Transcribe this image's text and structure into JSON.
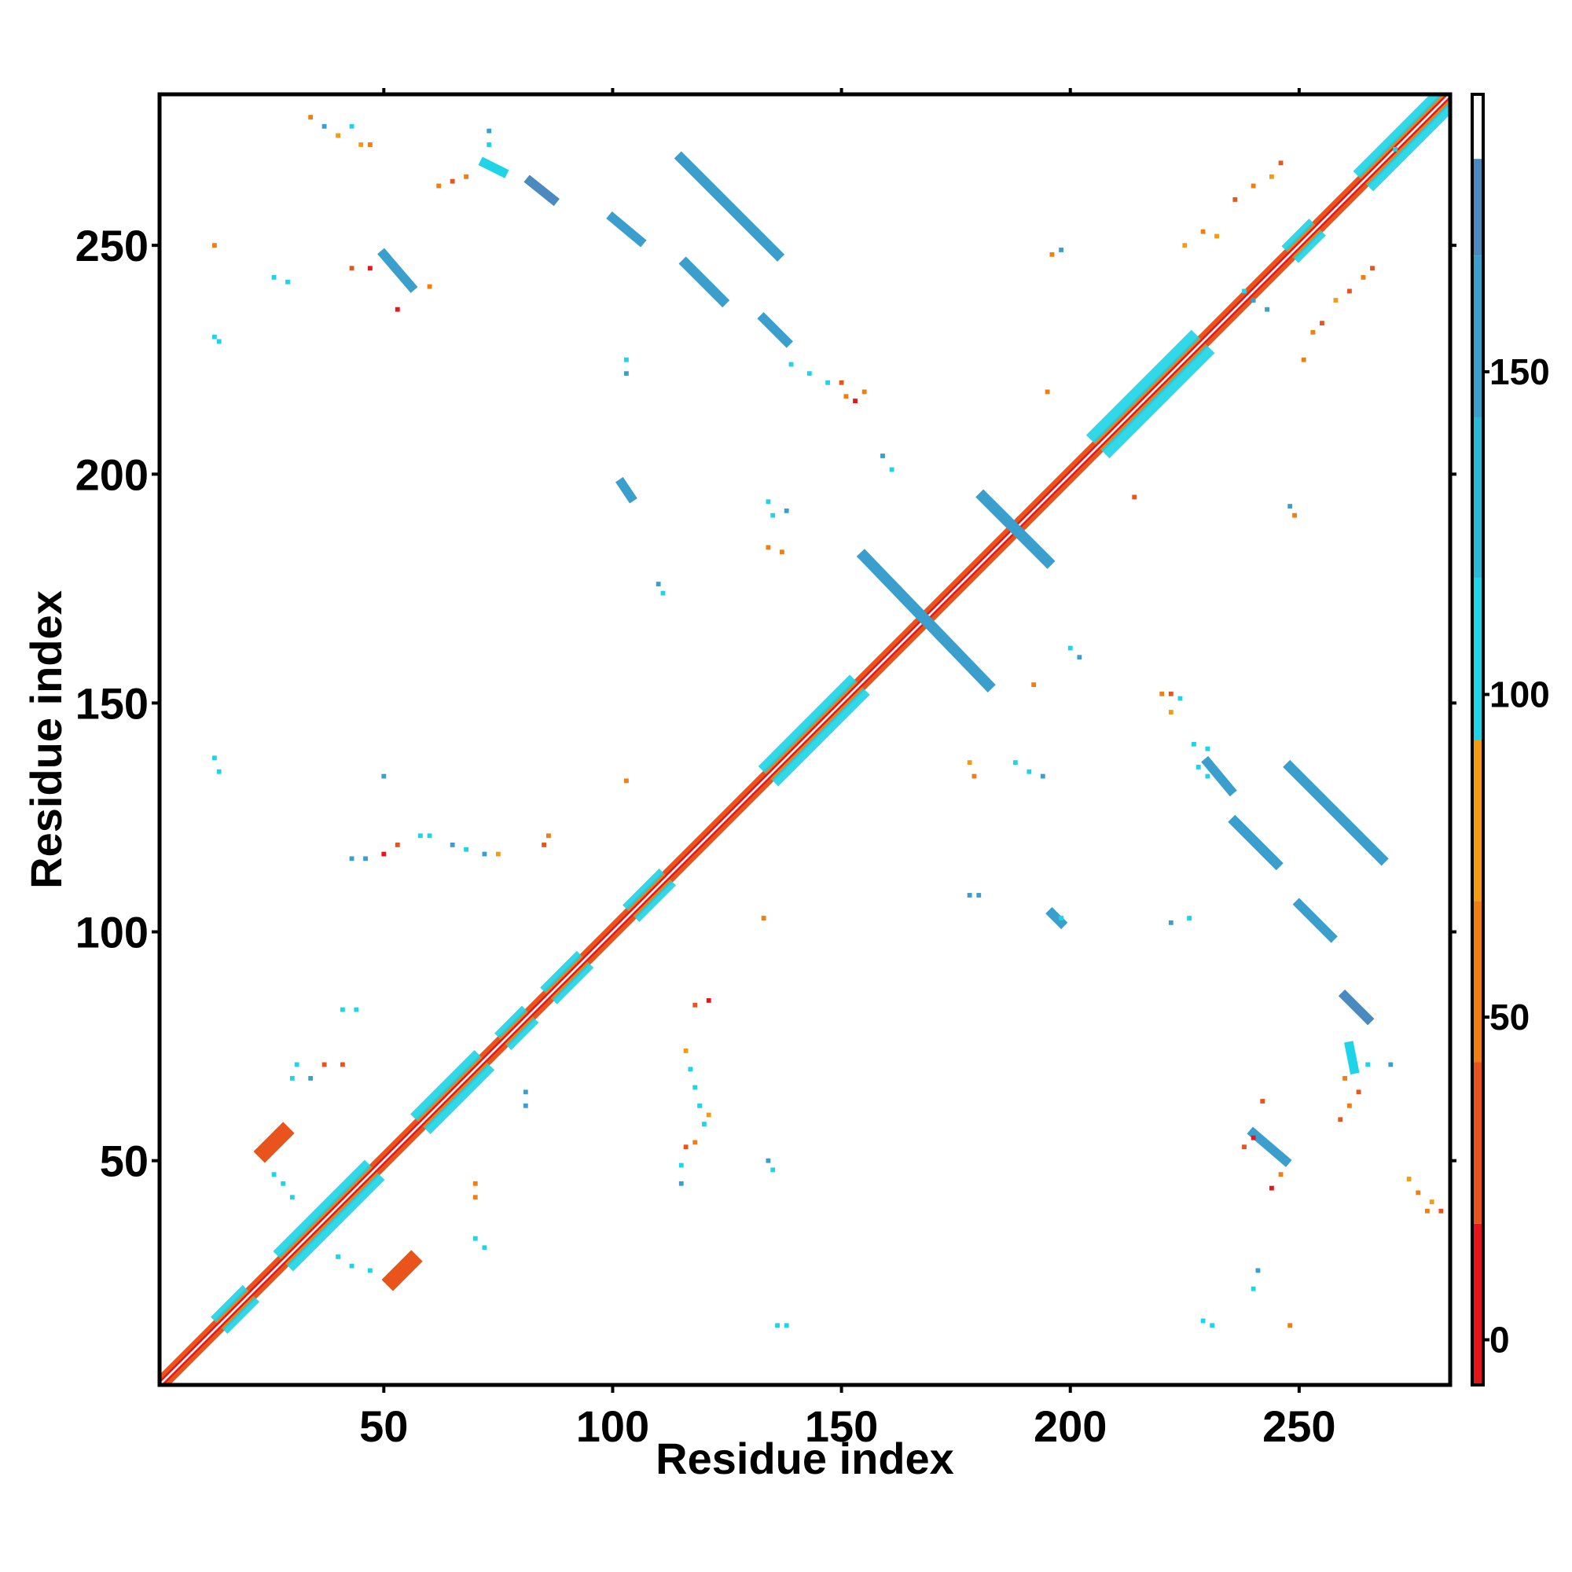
{
  "chart_data": {
    "type": "heatmap",
    "title": "",
    "xlabel": "Residue index",
    "ylabel": "Residue index",
    "xlim": [
      1,
      283
    ],
    "ylim": [
      1,
      283
    ],
    "x_ticks": [
      50,
      100,
      150,
      200,
      250
    ],
    "y_ticks": [
      50,
      100,
      150,
      200,
      250
    ],
    "colorbar": {
      "ticks": [
        0,
        50,
        100,
        150
      ],
      "range": [
        -7,
        193
      ],
      "bands": [
        {
          "from": -7,
          "to": 18,
          "color": "#e8151b"
        },
        {
          "from": 18,
          "to": 43,
          "color": "#e8541b"
        },
        {
          "from": 43,
          "to": 68,
          "color": "#f07e12"
        },
        {
          "from": 68,
          "to": 93,
          "color": "#f39c12"
        },
        {
          "from": 93,
          "to": 118,
          "color": "#1ed4e6"
        },
        {
          "from": 118,
          "to": 143,
          "color": "#2bb9d8"
        },
        {
          "from": 143,
          "to": 168,
          "color": "#3a9fcc"
        },
        {
          "from": 168,
          "to": 183,
          "color": "#4a8abf"
        },
        {
          "from": 183,
          "to": 193,
          "color": "#ffffff"
        }
      ]
    },
    "diagonal": {
      "from": 1,
      "to": 283,
      "color": "#e8541b",
      "core_color": "#e8151b"
    },
    "diagonal_segments": [
      {
        "from": 14,
        "to": 21,
        "color": "#1ed4e6",
        "width": 2
      },
      {
        "from": 28,
        "to": 48,
        "color": "#1ed4e6",
        "width": 3
      },
      {
        "from": 58,
        "to": 72,
        "color": "#1ed4e6",
        "width": 3
      },
      {
        "from": 76,
        "to": 82,
        "color": "#1ed4e6",
        "width": 2
      },
      {
        "from": 86,
        "to": 94,
        "color": "#1ed4e6",
        "width": 2
      },
      {
        "from": 104,
        "to": 112,
        "color": "#1ed4e6",
        "width": 2
      },
      {
        "from": 134,
        "to": 154,
        "color": "#1ed4e6",
        "width": 3
      },
      {
        "from": 206,
        "to": 229,
        "color": "#1ed4e6",
        "width": 4
      },
      {
        "from": 248,
        "to": 254,
        "color": "#1ed4e6",
        "width": 2
      },
      {
        "from": 264,
        "to": 283,
        "color": "#1ed4e6",
        "width": 3
      }
    ],
    "off_diagonal_strands": [
      {
        "points": [
          [
            115,
            269
          ],
          [
            136,
            248
          ]
        ],
        "color": "#3a9fcc",
        "width": 2.2
      },
      {
        "points": [
          [
            248,
            136
          ],
          [
            268,
            116
          ]
        ],
        "color": "#3a9fcc",
        "width": 2.2
      },
      {
        "points": [
          [
            116,
            246
          ],
          [
            124,
            238
          ]
        ],
        "color": "#3a9fcc",
        "width": 2.2
      },
      {
        "points": [
          [
            236,
            124
          ],
          [
            245,
            115
          ]
        ],
        "color": "#3a9fcc",
        "width": 2.2
      },
      {
        "points": [
          [
            133,
            234
          ],
          [
            138,
            229
          ]
        ],
        "color": "#3a9fcc",
        "width": 2
      },
      {
        "points": [
          [
            230,
            137
          ],
          [
            235,
            131
          ]
        ],
        "color": "#3a9fcc",
        "width": 2
      },
      {
        "points": [
          [
            100,
            256
          ],
          [
            106,
            251
          ]
        ],
        "color": "#3a9fcc",
        "width": 2
      },
      {
        "points": [
          [
            250,
            106
          ],
          [
            257,
            99
          ]
        ],
        "color": "#3a9fcc",
        "width": 2
      },
      {
        "points": [
          [
            82,
            264
          ],
          [
            87,
            260
          ]
        ],
        "color": "#4a8abf",
        "width": 2
      },
      {
        "points": [
          [
            260,
            86
          ],
          [
            265,
            81
          ]
        ],
        "color": "#4a8abf",
        "width": 2
      },
      {
        "points": [
          [
            50,
            248
          ],
          [
            56,
            241
          ]
        ],
        "color": "#3a9fcc",
        "width": 2
      },
      {
        "points": [
          [
            240,
            56
          ],
          [
            247,
            50
          ]
        ],
        "color": "#3a9fcc",
        "width": 2
      },
      {
        "points": [
          [
            155,
            182
          ],
          [
            182,
            154
          ]
        ],
        "color": "#3a9fcc",
        "width": 2.4
      },
      {
        "points": [
          [
            181,
            195
          ],
          [
            195,
            181
          ]
        ],
        "color": "#3a9fcc",
        "width": 2.4
      },
      {
        "points": [
          [
            72,
            268
          ],
          [
            76,
            266
          ]
        ],
        "color": "#1ed4e6",
        "width": 2
      },
      {
        "points": [
          [
            261,
            75
          ],
          [
            262,
            70
          ]
        ],
        "color": "#1ed4e6",
        "width": 2
      },
      {
        "points": [
          [
            24,
            52
          ],
          [
            28,
            56
          ]
        ],
        "color": "#e8541b",
        "width": 3.5
      },
      {
        "points": [
          [
            52,
            24
          ],
          [
            56,
            28
          ]
        ],
        "color": "#e8541b",
        "width": 3.5
      },
      {
        "points": [
          [
            102,
            198
          ],
          [
            104,
            195
          ]
        ],
        "color": "#3a9fcc",
        "width": 2
      },
      {
        "points": [
          [
            196,
            104
          ],
          [
            198,
            102
          ]
        ],
        "color": "#3a9fcc",
        "width": 2
      }
    ],
    "scatter_cells": [
      {
        "x": 13,
        "y": 230,
        "color": "#1ed4e6"
      },
      {
        "x": 14,
        "y": 229,
        "color": "#1ed4e6"
      },
      {
        "x": 13,
        "y": 138,
        "color": "#1ed4e6"
      },
      {
        "x": 14,
        "y": 135,
        "color": "#1ed4e6"
      },
      {
        "x": 13,
        "y": 250,
        "color": "#f07e12"
      },
      {
        "x": 34,
        "y": 278,
        "color": "#f07e12"
      },
      {
        "x": 37,
        "y": 276,
        "color": "#3a9fcc"
      },
      {
        "x": 40,
        "y": 274,
        "color": "#f39c12"
      },
      {
        "x": 43,
        "y": 276,
        "color": "#1ed4e6"
      },
      {
        "x": 45,
        "y": 272,
        "color": "#f39c12"
      },
      {
        "x": 47,
        "y": 272,
        "color": "#f07e12"
      },
      {
        "x": 62,
        "y": 263,
        "color": "#f07e12"
      },
      {
        "x": 65,
        "y": 264,
        "color": "#e8541b"
      },
      {
        "x": 68,
        "y": 265,
        "color": "#f07e12"
      },
      {
        "x": 73,
        "y": 275,
        "color": "#3a9fcc"
      },
      {
        "x": 73,
        "y": 272,
        "color": "#1ed4e6"
      },
      {
        "x": 26,
        "y": 243,
        "color": "#1ed4e6"
      },
      {
        "x": 29,
        "y": 242,
        "color": "#1ed4e6"
      },
      {
        "x": 43,
        "y": 245,
        "color": "#e8541b"
      },
      {
        "x": 47,
        "y": 245,
        "color": "#e8151b"
      },
      {
        "x": 53,
        "y": 236,
        "color": "#e8151b"
      },
      {
        "x": 60,
        "y": 241,
        "color": "#f07e12"
      },
      {
        "x": 103,
        "y": 225,
        "color": "#1ed4e6"
      },
      {
        "x": 103,
        "y": 222,
        "color": "#3a9fcc"
      },
      {
        "x": 139,
        "y": 224,
        "color": "#1ed4e6"
      },
      {
        "x": 143,
        "y": 222,
        "color": "#1ed4e6"
      },
      {
        "x": 147,
        "y": 220,
        "color": "#1ed4e6"
      },
      {
        "x": 150,
        "y": 220,
        "color": "#e8541b"
      },
      {
        "x": 151,
        "y": 217,
        "color": "#f07e12"
      },
      {
        "x": 153,
        "y": 216,
        "color": "#e8151b"
      },
      {
        "x": 155,
        "y": 218,
        "color": "#f07e12"
      },
      {
        "x": 159,
        "y": 204,
        "color": "#3a9fcc"
      },
      {
        "x": 161,
        "y": 201,
        "color": "#1ed4e6"
      },
      {
        "x": 134,
        "y": 194,
        "color": "#1ed4e6"
      },
      {
        "x": 135,
        "y": 191,
        "color": "#1ed4e6"
      },
      {
        "x": 138,
        "y": 192,
        "color": "#3a9fcc"
      },
      {
        "x": 134,
        "y": 184,
        "color": "#f07e12"
      },
      {
        "x": 137,
        "y": 183,
        "color": "#f07e12"
      },
      {
        "x": 110,
        "y": 176,
        "color": "#3a9fcc"
      },
      {
        "x": 111,
        "y": 174,
        "color": "#1ed4e6"
      },
      {
        "x": 103,
        "y": 133,
        "color": "#f07e12"
      },
      {
        "x": 50,
        "y": 134,
        "color": "#3a9fcc"
      },
      {
        "x": 43,
        "y": 116,
        "color": "#3a9fcc"
      },
      {
        "x": 46,
        "y": 116,
        "color": "#3a9fcc"
      },
      {
        "x": 50,
        "y": 117,
        "color": "#e8151b"
      },
      {
        "x": 53,
        "y": 119,
        "color": "#e8541b"
      },
      {
        "x": 58,
        "y": 121,
        "color": "#1ed4e6"
      },
      {
        "x": 60,
        "y": 121,
        "color": "#1ed4e6"
      },
      {
        "x": 65,
        "y": 119,
        "color": "#3a9fcc"
      },
      {
        "x": 68,
        "y": 118,
        "color": "#1ed4e6"
      },
      {
        "x": 72,
        "y": 117,
        "color": "#3a9fcc"
      },
      {
        "x": 75,
        "y": 117,
        "color": "#f39c12"
      },
      {
        "x": 85,
        "y": 119,
        "color": "#e8541b"
      },
      {
        "x": 86,
        "y": 121,
        "color": "#f07e12"
      },
      {
        "x": 178,
        "y": 137,
        "color": "#f39c12"
      },
      {
        "x": 179,
        "y": 134,
        "color": "#f07e12"
      },
      {
        "x": 188,
        "y": 137,
        "color": "#1ed4e6"
      },
      {
        "x": 191,
        "y": 135,
        "color": "#1ed4e6"
      },
      {
        "x": 194,
        "y": 134,
        "color": "#3a9fcc"
      },
      {
        "x": 178,
        "y": 108,
        "color": "#3a9fcc"
      },
      {
        "x": 180,
        "y": 108,
        "color": "#3a9fcc"
      },
      {
        "x": 196,
        "y": 104,
        "color": "#3a9fcc"
      },
      {
        "x": 198,
        "y": 103,
        "color": "#1ed4e6"
      },
      {
        "x": 133,
        "y": 103,
        "color": "#f07e12"
      },
      {
        "x": 220,
        "y": 152,
        "color": "#f07e12"
      },
      {
        "x": 222,
        "y": 152,
        "color": "#e8541b"
      },
      {
        "x": 224,
        "y": 151,
        "color": "#1ed4e6"
      },
      {
        "x": 222,
        "y": 148,
        "color": "#f39c12"
      },
      {
        "x": 227,
        "y": 141,
        "color": "#1ed4e6"
      },
      {
        "x": 230,
        "y": 140,
        "color": "#1ed4e6"
      },
      {
        "x": 228,
        "y": 136,
        "color": "#1ed4e6"
      },
      {
        "x": 230,
        "y": 134,
        "color": "#1ed4e6"
      },
      {
        "x": 200,
        "y": 162,
        "color": "#1ed4e6"
      },
      {
        "x": 202,
        "y": 160,
        "color": "#3a9fcc"
      },
      {
        "x": 192,
        "y": 154,
        "color": "#f07e12"
      },
      {
        "x": 226,
        "y": 103,
        "color": "#1ed4e6"
      },
      {
        "x": 222,
        "y": 102,
        "color": "#3a9fcc"
      },
      {
        "x": 41,
        "y": 83,
        "color": "#1ed4e6"
      },
      {
        "x": 44,
        "y": 83,
        "color": "#1ed4e6"
      },
      {
        "x": 30,
        "y": 68,
        "color": "#1ed4e6"
      },
      {
        "x": 31,
        "y": 71,
        "color": "#1ed4e6"
      },
      {
        "x": 34,
        "y": 68,
        "color": "#3a9fcc"
      },
      {
        "x": 37,
        "y": 71,
        "color": "#e8541b"
      },
      {
        "x": 41,
        "y": 71,
        "color": "#e8541b"
      },
      {
        "x": 26,
        "y": 47,
        "color": "#1ed4e6"
      },
      {
        "x": 28,
        "y": 45,
        "color": "#1ed4e6"
      },
      {
        "x": 30,
        "y": 42,
        "color": "#1ed4e6"
      },
      {
        "x": 40,
        "y": 29,
        "color": "#1ed4e6"
      },
      {
        "x": 43,
        "y": 27,
        "color": "#1ed4e6"
      },
      {
        "x": 47,
        "y": 26,
        "color": "#1ed4e6"
      },
      {
        "x": 70,
        "y": 33,
        "color": "#1ed4e6"
      },
      {
        "x": 72,
        "y": 31,
        "color": "#1ed4e6"
      },
      {
        "x": 70,
        "y": 42,
        "color": "#f07e12"
      },
      {
        "x": 70,
        "y": 45,
        "color": "#f07e12"
      },
      {
        "x": 81,
        "y": 65,
        "color": "#3a9fcc"
      },
      {
        "x": 81,
        "y": 62,
        "color": "#3a9fcc"
      },
      {
        "x": 118,
        "y": 84,
        "color": "#e8541b"
      },
      {
        "x": 121,
        "y": 85,
        "color": "#e8151b"
      },
      {
        "x": 116,
        "y": 74,
        "color": "#f39c12"
      },
      {
        "x": 117,
        "y": 70,
        "color": "#1ed4e6"
      },
      {
        "x": 118,
        "y": 66,
        "color": "#1ed4e6"
      },
      {
        "x": 119,
        "y": 62,
        "color": "#1ed4e6"
      },
      {
        "x": 120,
        "y": 58,
        "color": "#1ed4e6"
      },
      {
        "x": 121,
        "y": 60,
        "color": "#f39c12"
      },
      {
        "x": 116,
        "y": 53,
        "color": "#e8541b"
      },
      {
        "x": 118,
        "y": 54,
        "color": "#f07e12"
      },
      {
        "x": 115,
        "y": 49,
        "color": "#1ed4e6"
      },
      {
        "x": 115,
        "y": 45,
        "color": "#3a9fcc"
      },
      {
        "x": 134,
        "y": 50,
        "color": "#3a9fcc"
      },
      {
        "x": 135,
        "y": 48,
        "color": "#1ed4e6"
      },
      {
        "x": 136,
        "y": 14,
        "color": "#1ed4e6"
      },
      {
        "x": 138,
        "y": 14,
        "color": "#1ed4e6"
      },
      {
        "x": 229,
        "y": 15,
        "color": "#1ed4e6"
      },
      {
        "x": 231,
        "y": 14,
        "color": "#1ed4e6"
      },
      {
        "x": 248,
        "y": 14,
        "color": "#f07e12"
      },
      {
        "x": 240,
        "y": 22,
        "color": "#1ed4e6"
      },
      {
        "x": 241,
        "y": 26,
        "color": "#3a9fcc"
      },
      {
        "x": 238,
        "y": 53,
        "color": "#e8541b"
      },
      {
        "x": 240,
        "y": 55,
        "color": "#e8151b"
      },
      {
        "x": 242,
        "y": 63,
        "color": "#e8541b"
      },
      {
        "x": 244,
        "y": 44,
        "color": "#e8151b"
      },
      {
        "x": 246,
        "y": 47,
        "color": "#f07e12"
      },
      {
        "x": 260,
        "y": 68,
        "color": "#f07e12"
      },
      {
        "x": 263,
        "y": 65,
        "color": "#e8541b"
      },
      {
        "x": 261,
        "y": 62,
        "color": "#f07e12"
      },
      {
        "x": 259,
        "y": 59,
        "color": "#e8541b"
      },
      {
        "x": 265,
        "y": 71,
        "color": "#1ed4e6"
      },
      {
        "x": 270,
        "y": 71,
        "color": "#3a9fcc"
      },
      {
        "x": 274,
        "y": 46,
        "color": "#f39c12"
      },
      {
        "x": 276,
        "y": 43,
        "color": "#f07e12"
      },
      {
        "x": 279,
        "y": 41,
        "color": "#f39c12"
      },
      {
        "x": 281,
        "y": 39,
        "color": "#e8541b"
      },
      {
        "x": 278,
        "y": 39,
        "color": "#f07e12"
      },
      {
        "x": 214,
        "y": 195,
        "color": "#e8541b"
      },
      {
        "x": 248,
        "y": 193,
        "color": "#3a9fcc"
      },
      {
        "x": 249,
        "y": 191,
        "color": "#f07e12"
      },
      {
        "x": 196,
        "y": 248,
        "color": "#f07e12"
      },
      {
        "x": 198,
        "y": 249,
        "color": "#3a9fcc"
      },
      {
        "x": 195,
        "y": 218,
        "color": "#f07e12"
      },
      {
        "x": 225,
        "y": 250,
        "color": "#f39c12"
      },
      {
        "x": 229,
        "y": 253,
        "color": "#f07e12"
      },
      {
        "x": 232,
        "y": 252,
        "color": "#f39c12"
      },
      {
        "x": 236,
        "y": 260,
        "color": "#e8541b"
      },
      {
        "x": 240,
        "y": 263,
        "color": "#f07e12"
      },
      {
        "x": 244,
        "y": 265,
        "color": "#f39c12"
      },
      {
        "x": 246,
        "y": 268,
        "color": "#e8541b"
      },
      {
        "x": 238,
        "y": 240,
        "color": "#1ed4e6"
      },
      {
        "x": 240,
        "y": 238,
        "color": "#3a9fcc"
      },
      {
        "x": 243,
        "y": 236,
        "color": "#3a9fcc"
      },
      {
        "x": 253,
        "y": 231,
        "color": "#f07e12"
      },
      {
        "x": 255,
        "y": 233,
        "color": "#e8541b"
      },
      {
        "x": 251,
        "y": 225,
        "color": "#f07e12"
      },
      {
        "x": 258,
        "y": 238,
        "color": "#f39c12"
      },
      {
        "x": 261,
        "y": 240,
        "color": "#e8541b"
      },
      {
        "x": 264,
        "y": 243,
        "color": "#f07e12"
      },
      {
        "x": 266,
        "y": 245,
        "color": "#e8541b"
      },
      {
        "x": 271,
        "y": 271,
        "color": "#1ed4e6"
      }
    ]
  }
}
